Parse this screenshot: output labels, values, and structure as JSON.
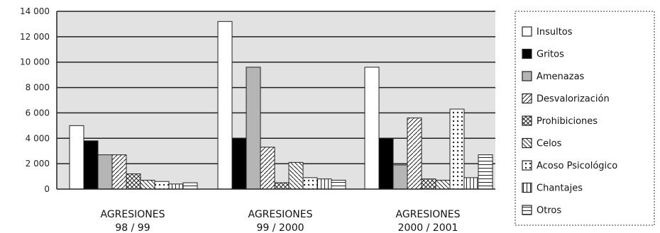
{
  "chart_data": {
    "type": "bar",
    "categories": [
      [
        "AGRESIONES",
        "98 / 99"
      ],
      [
        "AGRESIONES",
        "99 / 2000"
      ],
      [
        "AGRESIONES",
        "2000 / 2001"
      ]
    ],
    "y_ticks": [
      "0",
      "2 000",
      "4 000",
      "6 000",
      "8 000",
      "10 000",
      "12 000",
      "14 000"
    ],
    "ylim": [
      0,
      14000
    ],
    "grid": true,
    "legend_position": "right",
    "series": [
      {
        "name": "Insultos",
        "values": [
          5000,
          13200,
          9600
        ]
      },
      {
        "name": "Gritos",
        "values": [
          3800,
          4000,
          4000
        ]
      },
      {
        "name": "Amenazas",
        "values": [
          2700,
          9600,
          1900
        ]
      },
      {
        "name": "Desvalorización",
        "values": [
          2700,
          3300,
          5600
        ]
      },
      {
        "name": "Prohibiciones",
        "values": [
          1200,
          500,
          800
        ]
      },
      {
        "name": "Celos",
        "values": [
          700,
          2100,
          700
        ]
      },
      {
        "name": "Acoso Psicológico",
        "values": [
          600,
          900,
          6300
        ]
      },
      {
        "name": "Chantajes",
        "values": [
          400,
          800,
          900
        ]
      },
      {
        "name": "Otros",
        "values": [
          500,
          700,
          2700
        ]
      }
    ]
  }
}
